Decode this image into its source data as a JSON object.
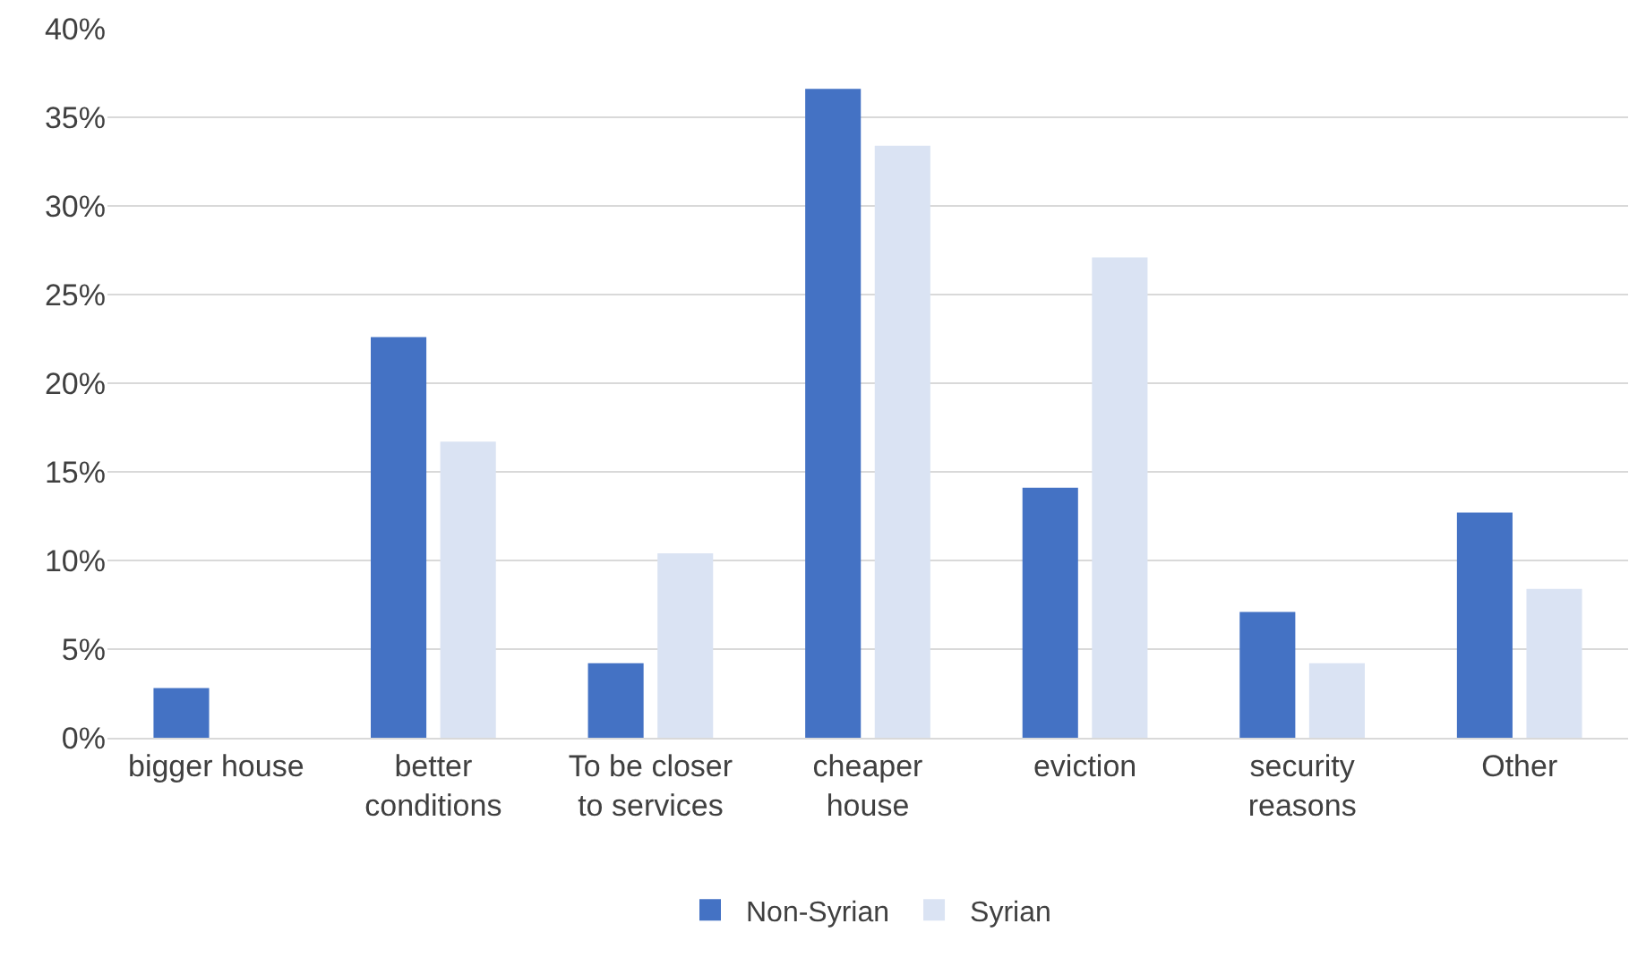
{
  "chart_data": {
    "type": "bar",
    "categories": [
      "bigger house",
      "better conditions",
      "To be closer to services",
      "cheaper house",
      "eviction",
      "security reasons",
      "Other"
    ],
    "series": [
      {
        "name": "Non-Syrian",
        "color": "#4472c4",
        "values": [
          2.8,
          22.6,
          4.2,
          36.6,
          14.1,
          7.1,
          12.7
        ]
      },
      {
        "name": "Syrian",
        "color": "#dae3f3",
        "values": [
          0,
          16.7,
          10.4,
          33.4,
          27.1,
          4.2,
          8.4
        ]
      }
    ],
    "ylim": [
      0,
      40
    ],
    "yticks": [
      {
        "value": 0,
        "label": "0%"
      },
      {
        "value": 5,
        "label": "5%"
      },
      {
        "value": 10,
        "label": "10%"
      },
      {
        "value": 15,
        "label": "15%"
      },
      {
        "value": 20,
        "label": "20%"
      },
      {
        "value": 25,
        "label": "25%"
      },
      {
        "value": 30,
        "label": "30%"
      },
      {
        "value": 35,
        "label": "35%"
      },
      {
        "value": 40,
        "label": "40%"
      }
    ],
    "grid": "y",
    "legend": "bottom"
  }
}
